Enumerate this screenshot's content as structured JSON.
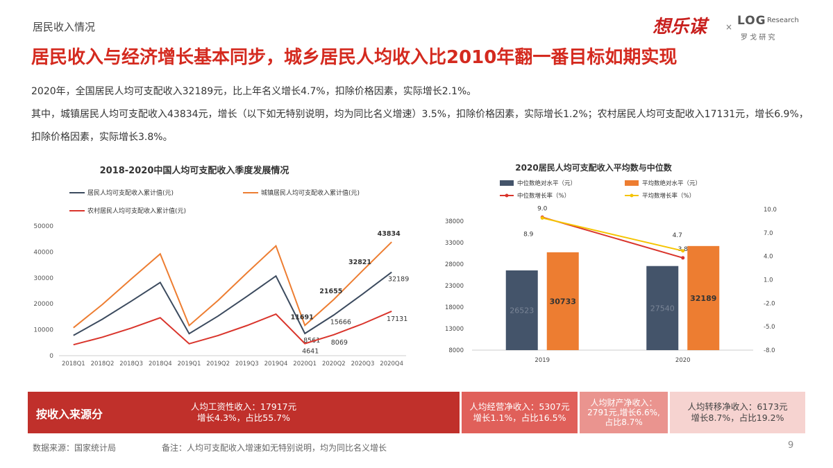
{
  "header": {
    "section": "居民收入情况",
    "logo_main": "想乐谋",
    "logo_x": "×",
    "logo_log": "LOG",
    "logo_research": "Research",
    "logo_cn": "罗 戈 研 究"
  },
  "headline": "居民收入与经济增长基本同步，城乡居民人均收入比2010年翻一番目标如期实现",
  "paragraphs": [
    "2020年，全国居民人均可支配收入32189元，比上年名义增长4.7%，扣除价格因素，实际增长2.1%。",
    "其中，城镇居民人均可支配收入43834元，增长（以下如无特别说明，均为同比名义增速）3.5%，扣除价格因素，实际增长1.2%；农村居民人均可支配收入17131元，增长6.9%，扣除价格因素，实际增长3.8%。"
  ],
  "chart_data": [
    {
      "type": "line",
      "title": "2018-2020中国人均可支配收入季度发展情况",
      "categories": [
        "2018Q1",
        "2018Q2",
        "2018Q3",
        "2018Q4",
        "2019Q1",
        "2019Q2",
        "2019Q3",
        "2019Q4",
        "2020Q1",
        "2020Q2",
        "2020Q3",
        "2020Q4"
      ],
      "series": [
        {
          "name": "居民人均可支配收入累计值(元)",
          "color": "#3b4a5e",
          "values": [
            7800,
            14063,
            21035,
            28228,
            8493,
            15294,
            22882,
            30733,
            8561,
            15666,
            23781,
            32189
          ],
          "value_labels": [
            null,
            null,
            null,
            null,
            null,
            null,
            null,
            null,
            "8561",
            "15666",
            null,
            "32189"
          ]
        },
        {
          "name": "城镇居民人均可支配收入累计值(元)",
          "color": "#ed7d31",
          "values": [
            10781,
            19770,
            29599,
            39251,
            11633,
            21342,
            31939,
            42359,
            11691,
            21655,
            32821,
            43834
          ],
          "value_labels": [
            null,
            null,
            null,
            null,
            null,
            null,
            null,
            null,
            "11691",
            "21655",
            "32821",
            "43834"
          ]
        },
        {
          "name": "农村居民人均可支配收入累计值(元)",
          "color": "#d9342b",
          "values": [
            4226,
            7142,
            10645,
            14617,
            4600,
            7778,
            11622,
            16021,
            4641,
            8069,
            12297,
            17131
          ],
          "value_labels": [
            null,
            null,
            null,
            null,
            null,
            null,
            null,
            null,
            "4641",
            "8069",
            null,
            "17131"
          ]
        }
      ],
      "ylim": [
        0,
        50000
      ],
      "yticks": [
        0,
        10000,
        20000,
        30000,
        40000,
        50000
      ],
      "grid": false
    },
    {
      "type": "bar",
      "title": "2020居民人均可支配收入平均数与中位数",
      "categories": [
        "2019",
        "2020"
      ],
      "series": [
        {
          "name": "中位数绝对水平（元）",
          "color": "#44546a",
          "values": [
            26523,
            27540
          ]
        },
        {
          "name": "平均数绝对水平（元）",
          "color": "#ed7d31",
          "values": [
            30733,
            32189
          ]
        },
        {
          "name": "中位数增长率（%）",
          "color": "#d9342b",
          "axis": "y2",
          "values": [
            9.0,
            3.8
          ],
          "value_labels": [
            "9.0",
            "3.8"
          ]
        },
        {
          "name": "平均数增长率（%）",
          "color": "#f5c400",
          "axis": "y2",
          "values": [
            8.9,
            4.7
          ],
          "value_labels": [
            "8.9",
            "4.7"
          ]
        }
      ],
      "ylim": [
        8000,
        40700
      ],
      "yticks": [
        8000,
        13000,
        18000,
        23000,
        28000,
        33000,
        38000
      ],
      "y2lim": [
        -8,
        10
      ],
      "y2ticks": [
        {
          "value": -8,
          "label": "-8.0"
        },
        {
          "value": -5,
          "label": "-5.0"
        },
        {
          "value": -2,
          "label": "-2.0"
        },
        {
          "value": 1,
          "label": "1.0"
        },
        {
          "value": 4,
          "label": "4.0"
        },
        {
          "value": 7,
          "label": "7.0"
        },
        {
          "value": 10,
          "label": "10.0"
        }
      ],
      "grid": false
    }
  ],
  "income_sources": {
    "label": "按收入来源分",
    "items": [
      {
        "lines": [
          "人均工资性收入：17917元",
          "增长4.3%，占比55.7%"
        ]
      },
      {
        "lines": [
          "人均经营净收入：5307元",
          "增长1.1%，占比16.5%"
        ]
      },
      {
        "lines": [
          "人均财产净收入：",
          "2791元,增长6.6%,",
          "占比8.7%"
        ]
      },
      {
        "lines": [
          "人均转移净收入：6173元",
          "增长8.7%，占比19.2%"
        ]
      }
    ]
  },
  "footer": {
    "source": "数据来源：国家统计局",
    "note": "备注：人均可支配收入增速如无特别说明，均为同比名义增长",
    "page": "9"
  }
}
